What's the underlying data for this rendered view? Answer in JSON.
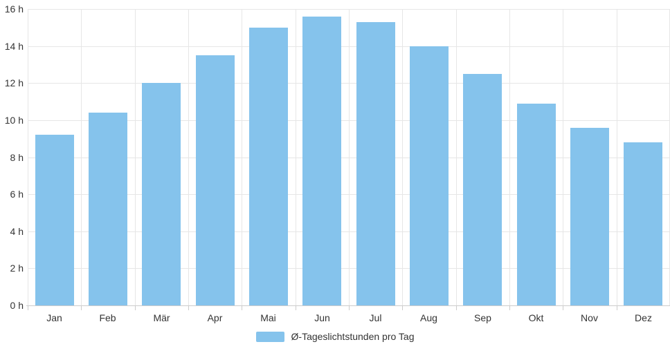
{
  "chart_data": {
    "type": "bar",
    "title": "",
    "xlabel": "",
    "ylabel": "",
    "categories": [
      "Jan",
      "Feb",
      "Mär",
      "Apr",
      "Mai",
      "Jun",
      "Jul",
      "Aug",
      "Sep",
      "Okt",
      "Nov",
      "Dez"
    ],
    "values": [
      9.2,
      10.4,
      12.0,
      13.5,
      15.0,
      15.6,
      15.3,
      14.0,
      12.5,
      10.9,
      9.6,
      8.8
    ],
    "series_name": "Ø-Tageslichtstunden pro Tag",
    "ylim": [
      0,
      16
    ],
    "y_tick_step": 2,
    "y_tick_labels": [
      "0 h",
      "2 h",
      "4 h",
      "6 h",
      "8 h",
      "10 h",
      "12 h",
      "14 h",
      "16 h"
    ],
    "grid": true,
    "legend_position": "bottom"
  },
  "legend": {
    "label": "Ø-Tageslichtstunden pro Tag"
  },
  "colors": {
    "bar": "#85c3ec",
    "grid": "#e6e6e6",
    "axis": "#cccccc",
    "text": "#333333",
    "background": "#ffffff"
  }
}
